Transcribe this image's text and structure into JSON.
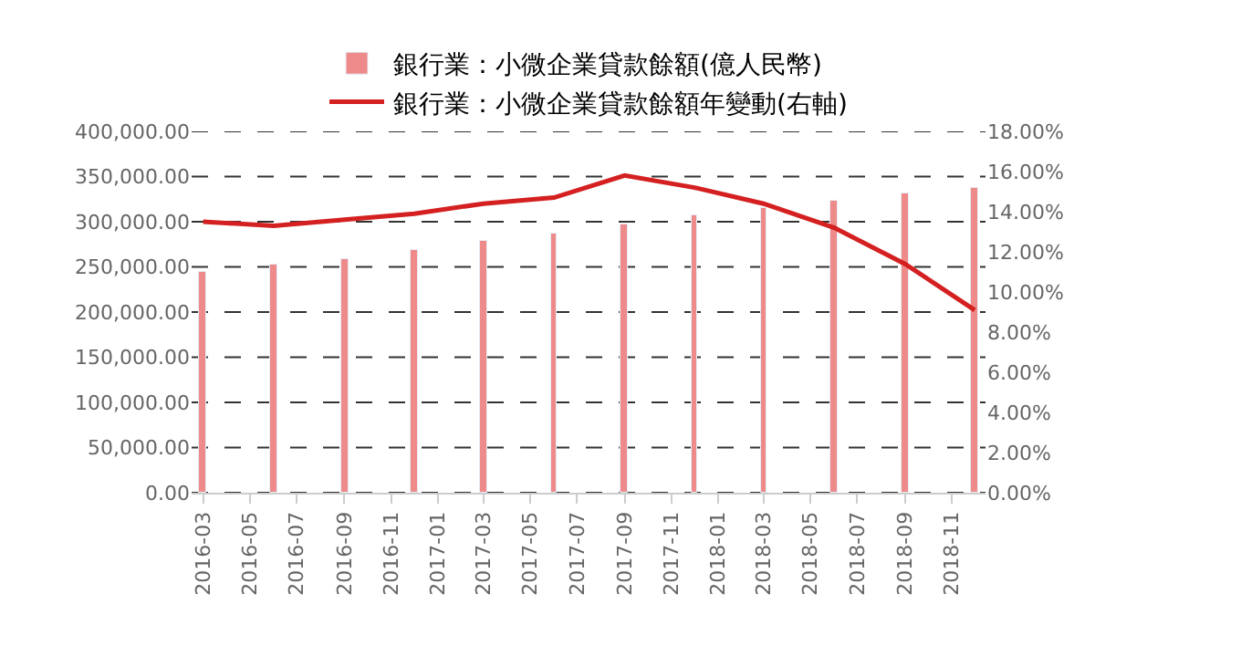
{
  "chart_data": {
    "type": "bar",
    "x": [
      "2016-03",
      "2016-06",
      "2016-09",
      "2016-12",
      "2017-03",
      "2017-06",
      "2017-09",
      "2017-12",
      "2018-03",
      "2018-06",
      "2018-09",
      "2018-12"
    ],
    "series": [
      {
        "name": "銀行業：小微企業貸款餘額(億人民幣)",
        "color": "#ef8a8a",
        "values": [
          244000,
          252000,
          258000,
          268000,
          279000,
          287000,
          296000,
          308000,
          316000,
          323000,
          331000,
          337000
        ]
      },
      {
        "name": "銀行業：小微企業貸款餘額年變動(右軸)",
        "type": "line",
        "axis": "y2",
        "color": "#d42020",
        "values": [
          13.5,
          13.3,
          13.6,
          13.9,
          14.4,
          14.7,
          15.8,
          15.2,
          14.4,
          13.2,
          11.4,
          9.1
        ]
      }
    ],
    "xlim": [
      "2016-02-15",
      "2018-12-15"
    ],
    "xticks": [
      {
        "value": "2016-03",
        "label": "2016-03"
      },
      {
        "value": "2016-05",
        "label": "2016-05"
      },
      {
        "value": "2016-07",
        "label": "2016-07"
      },
      {
        "value": "2016-09",
        "label": "2016-09"
      },
      {
        "value": "2016-11",
        "label": "2016-11"
      },
      {
        "value": "2017-01",
        "label": "2017-01"
      },
      {
        "value": "2017-03",
        "label": "2017-03"
      },
      {
        "value": "2017-05",
        "label": "2017-05"
      },
      {
        "value": "2017-07",
        "label": "2017-07"
      },
      {
        "value": "2017-09",
        "label": "2017-09"
      },
      {
        "value": "2017-11",
        "label": "2017-11"
      },
      {
        "value": "2018-01",
        "label": "2018-01"
      },
      {
        "value": "2018-03",
        "label": "2018-03"
      },
      {
        "value": "2018-05",
        "label": "2018-05"
      },
      {
        "value": "2018-07",
        "label": "2018-07"
      },
      {
        "value": "2018-09",
        "label": "2018-09"
      },
      {
        "value": "2018-11",
        "label": "2018-11"
      }
    ],
    "ylim": [
      0,
      400000
    ],
    "yticks": [
      {
        "value": 0,
        "label": "0.00"
      },
      {
        "value": 50000,
        "label": "50,000.00"
      },
      {
        "value": 100000,
        "label": "100,000.00"
      },
      {
        "value": 150000,
        "label": "150,000.00"
      },
      {
        "value": 200000,
        "label": "200,000.00"
      },
      {
        "value": 250000,
        "label": "250,000.00"
      },
      {
        "value": 300000,
        "label": "300,000.00"
      },
      {
        "value": 350000,
        "label": "350,000.00"
      },
      {
        "value": 400000,
        "label": "400,000.00"
      }
    ],
    "y2lim": [
      0,
      18
    ],
    "y2ticks": [
      {
        "value": 0,
        "label": "0.00%"
      },
      {
        "value": 2,
        "label": "2.00%"
      },
      {
        "value": 4,
        "label": "4.00%"
      },
      {
        "value": 6,
        "label": "6.00%"
      },
      {
        "value": 8,
        "label": "8.00%"
      },
      {
        "value": 10,
        "label": "10.00%"
      },
      {
        "value": 12,
        "label": "12.00%"
      },
      {
        "value": 14,
        "label": "14.00%"
      },
      {
        "value": 16,
        "label": "16.00%"
      },
      {
        "value": 18,
        "label": "18.00%"
      }
    ],
    "grid": "y",
    "legend": "top",
    "marker": "none",
    "line_style": "solid"
  }
}
